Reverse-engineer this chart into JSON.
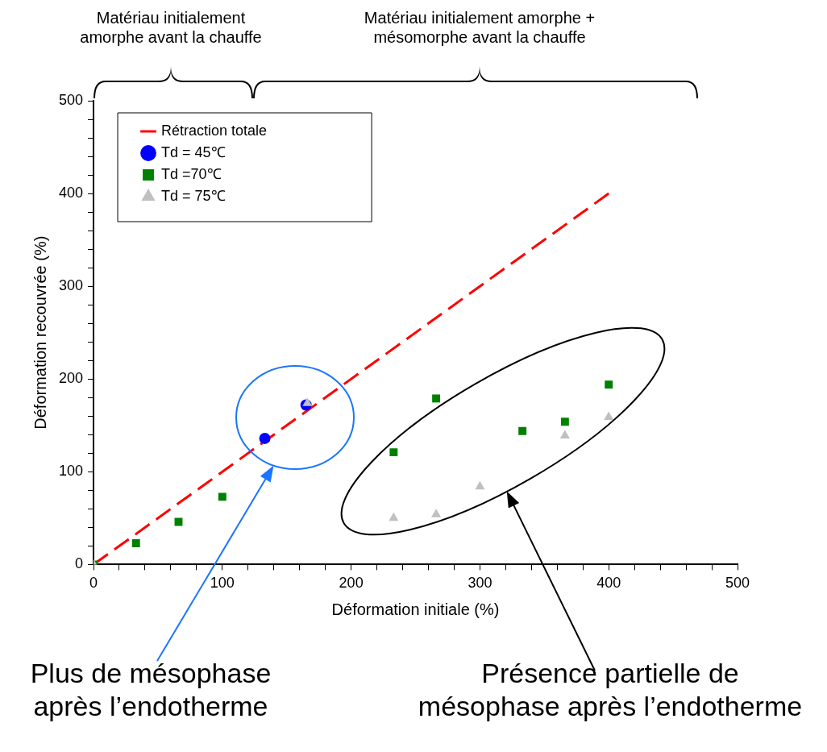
{
  "chart_data": {
    "type": "scatter",
    "xlabel": "Déformation initiale (%)",
    "ylabel": "Déformation recouvrée (%)",
    "xlim": [
      0,
      500
    ],
    "ylim": [
      0,
      500
    ],
    "xticks": [
      0,
      {
        "value": 20,
        "label": null
      },
      {
        "value": 40,
        "label": null
      },
      {
        "value": 60,
        "label": null
      },
      {
        "value": 80,
        "label": null
      },
      100,
      {
        "value": 120,
        "label": null
      },
      {
        "value": 140,
        "label": null
      },
      {
        "value": 160,
        "label": null
      },
      {
        "value": 180,
        "label": null
      },
      200,
      {
        "value": 220,
        "label": null
      },
      {
        "value": 240,
        "label": null
      },
      {
        "value": 260,
        "label": null
      },
      {
        "value": 280,
        "label": null
      },
      300,
      {
        "value": 320,
        "label": null
      },
      {
        "value": 340,
        "label": null
      },
      {
        "value": 360,
        "label": null
      },
      {
        "value": 380,
        "label": null
      },
      400,
      {
        "value": 420,
        "label": null
      },
      {
        "value": 440,
        "label": null
      },
      {
        "value": 460,
        "label": null
      },
      {
        "value": 480,
        "label": null
      },
      500
    ],
    "yticks": [
      0,
      {
        "value": 20,
        "label": null
      },
      {
        "value": 40,
        "label": null
      },
      {
        "value": 60,
        "label": null
      },
      {
        "value": 80,
        "label": null
      },
      100,
      {
        "value": 120,
        "label": null
      },
      {
        "value": 140,
        "label": null
      },
      {
        "value": 160,
        "label": null
      },
      {
        "value": 180,
        "label": null
      },
      200,
      {
        "value": 220,
        "label": null
      },
      {
        "value": 240,
        "label": null
      },
      {
        "value": 260,
        "label": null
      },
      {
        "value": 280,
        "label": null
      },
      300,
      {
        "value": 320,
        "label": null
      },
      {
        "value": 340,
        "label": null
      },
      {
        "value": 360,
        "label": null
      },
      {
        "value": 380,
        "label": null
      },
      400,
      {
        "value": 420,
        "label": null
      },
      {
        "value": 440,
        "label": null
      },
      {
        "value": 460,
        "label": null
      },
      {
        "value": 480,
        "label": null
      },
      500
    ],
    "grid": false,
    "legend": "top left",
    "series": [
      {
        "name": "Rétraction totale",
        "type": "line",
        "color": "#ff0000",
        "line_style": "dashed",
        "marker": "none",
        "x": [
          0,
          400
        ],
        "values": [
          0,
          400
        ]
      },
      {
        "name": "Td = 45℃",
        "color": "#0000ff",
        "marker": "circle",
        "x": [
          133,
          165
        ],
        "values": [
          136,
          172
        ]
      },
      {
        "name": "Td =70℃",
        "color": "#008000",
        "marker": "square",
        "x": [
          0,
          33,
          66,
          100,
          233,
          266,
          333,
          366,
          400
        ],
        "values": [
          0,
          23,
          46,
          73,
          121,
          179,
          144,
          154,
          194
        ]
      },
      {
        "name": "Td = 75℃",
        "color": "#c0c0c0",
        "marker": "triangle",
        "x": [
          0,
          166,
          233,
          266,
          300,
          366,
          400
        ],
        "values": [
          0,
          174,
          50,
          54,
          84,
          139,
          159
        ]
      }
    ],
    "annotations": [
      "Matériau initialement\namorphe avant la chauffe",
      "Matériau initialement amorphe +\nmésomorphe avant la chauffe",
      "Plus de mésophase\naprès l’endotherme",
      "Présence partielle de\nmésophase après l’endotherme"
    ]
  }
}
